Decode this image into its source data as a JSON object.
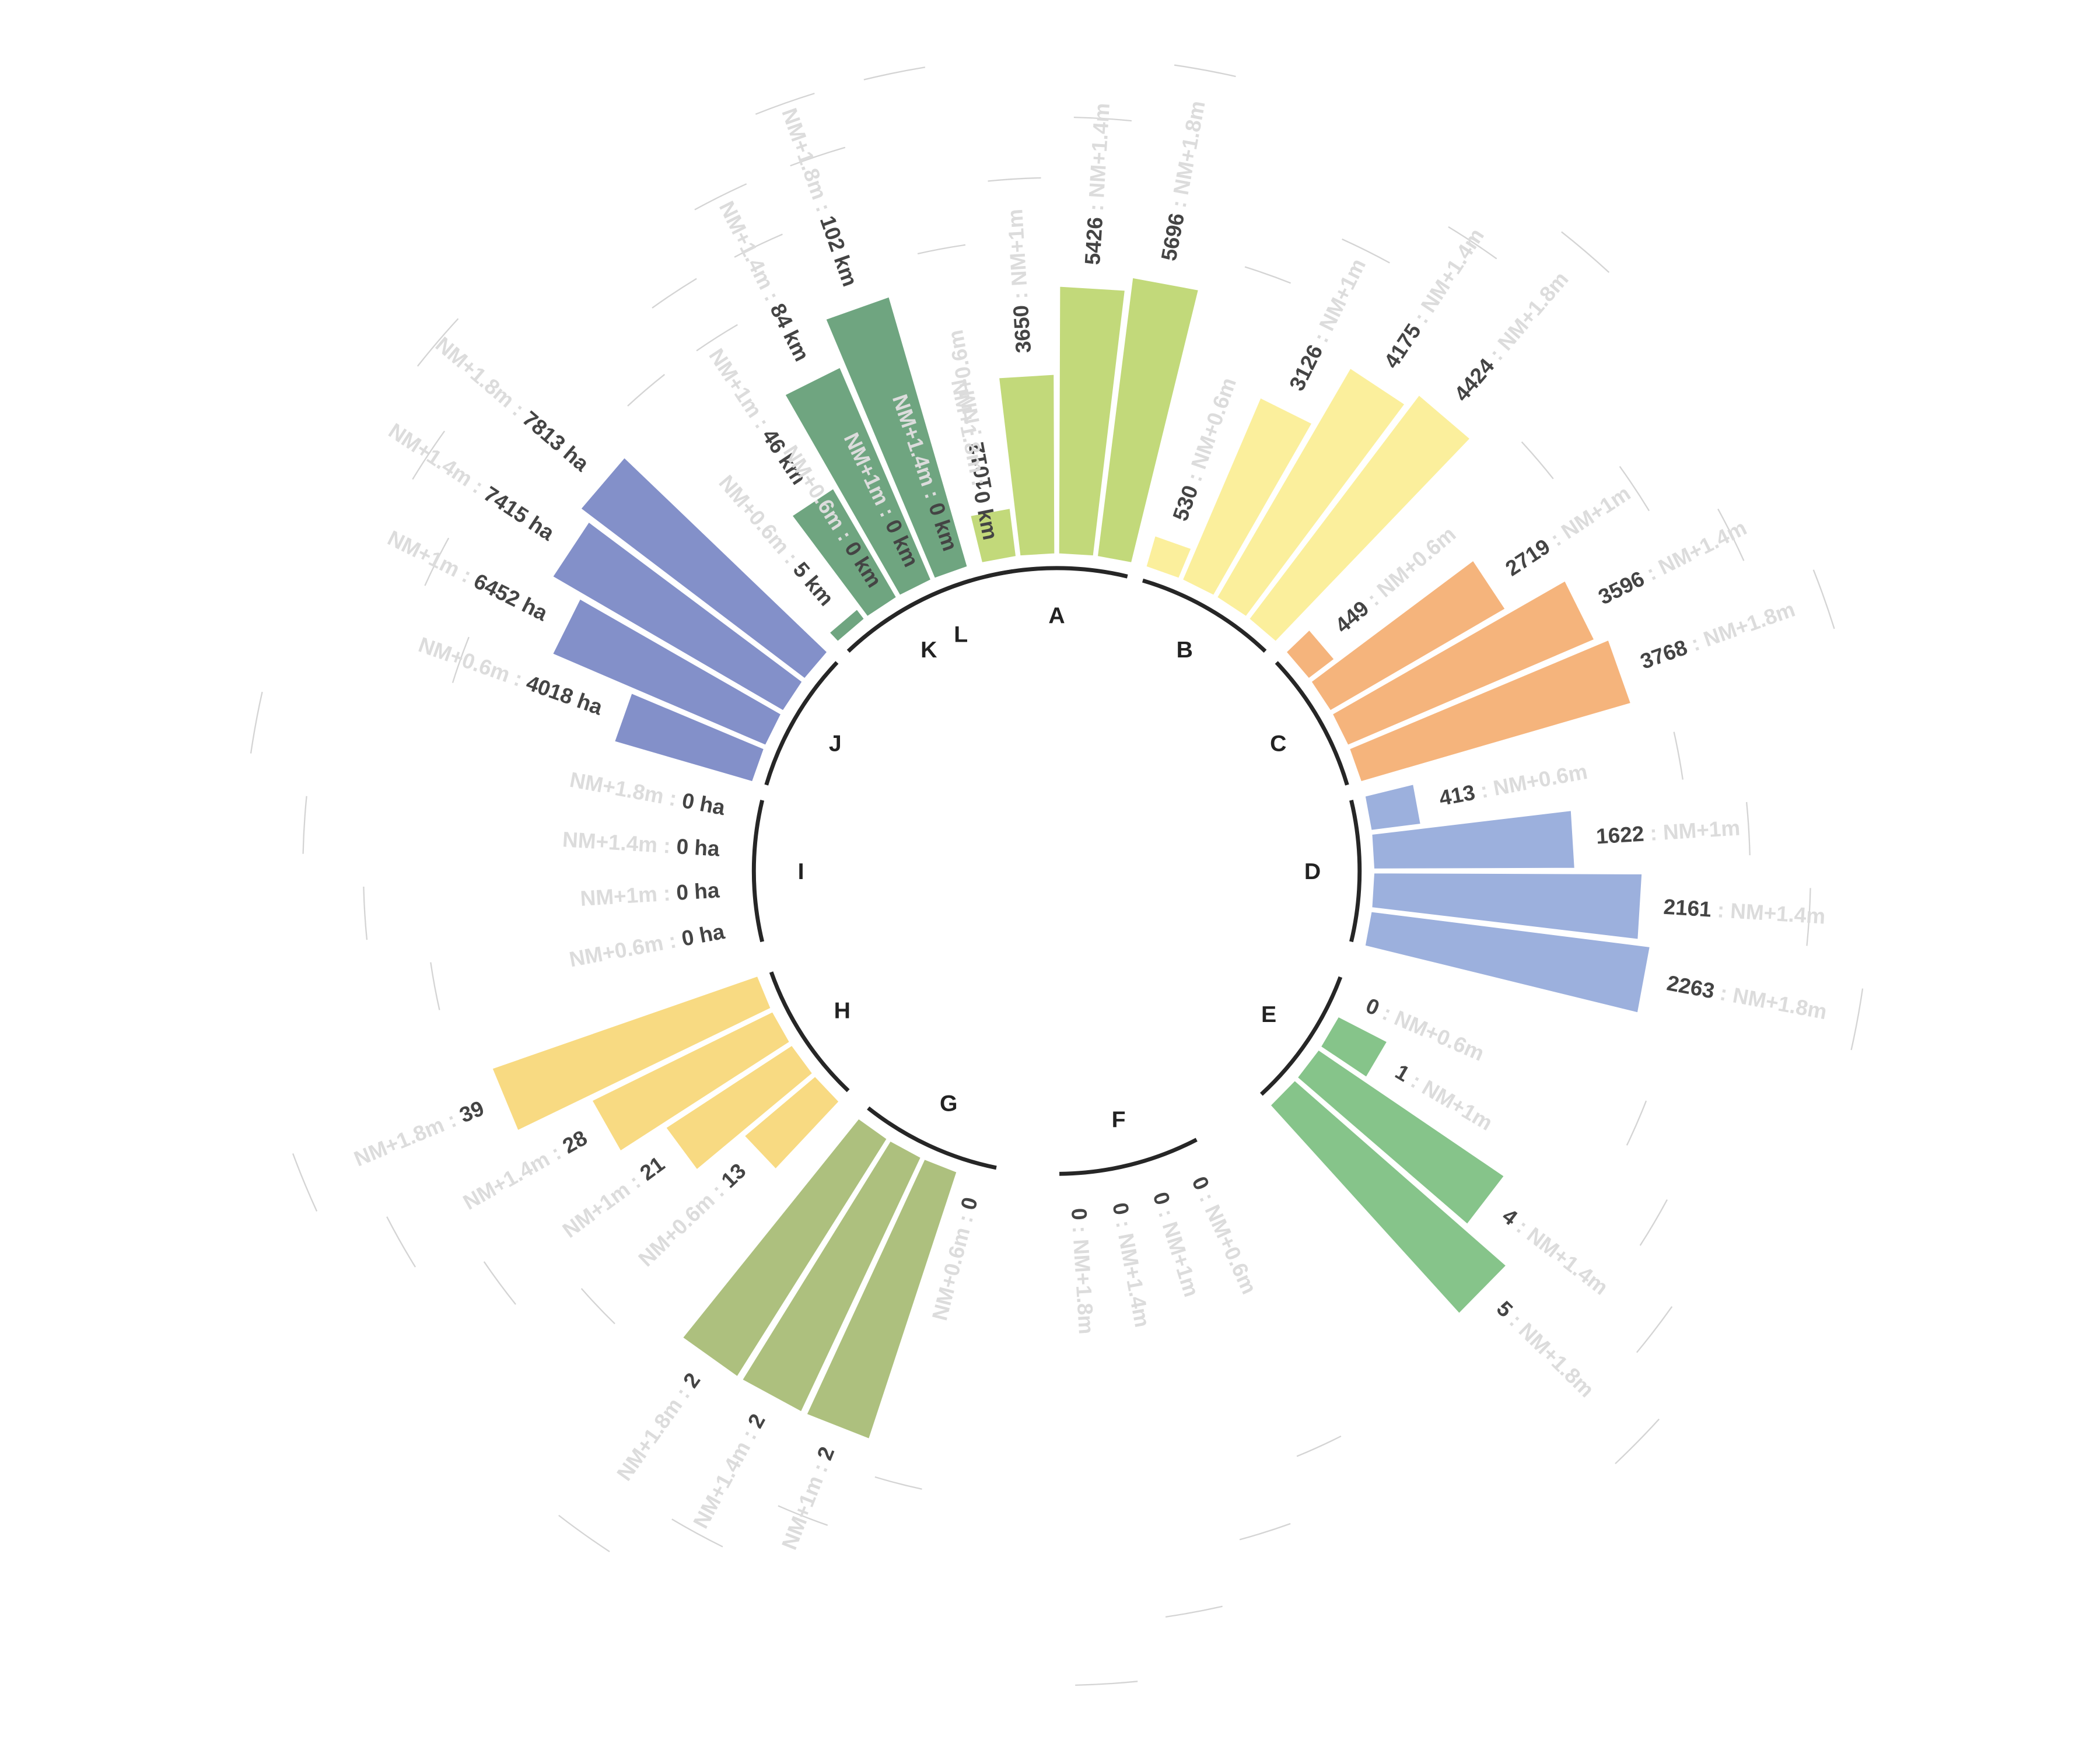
{
  "chart_data": {
    "type": "bar",
    "layout": "radial",
    "levels": [
      "NM+0.6m",
      "NM+1m",
      "NM+1.4m",
      "NM+1.8m"
    ],
    "segments": [
      {
        "letter": "A",
        "color": "#c2d97a",
        "values": [
          1012,
          3650,
          5426,
          5696
        ],
        "labels": [
          "1012",
          "3650",
          "5426",
          "5696"
        ]
      },
      {
        "letter": "B",
        "color": "#fbef9c",
        "values": [
          530,
          3126,
          4175,
          4424
        ],
        "labels": [
          "530",
          "3126",
          "4175",
          "4424"
        ]
      },
      {
        "letter": "C",
        "color": "#f5b47c",
        "values": [
          449,
          2719,
          3596,
          3768
        ],
        "labels": [
          "449",
          "2719",
          "3596",
          "3768"
        ]
      },
      {
        "letter": "D",
        "color": "#9cb0dd",
        "values": [
          413,
          1622,
          2161,
          2263
        ],
        "labels": [
          "413",
          "1622",
          "2161",
          "2263"
        ]
      },
      {
        "letter": "E",
        "color": "#86c48a",
        "values": [
          0,
          1,
          4,
          5
        ],
        "labels": [
          "0",
          "1",
          "4",
          "5"
        ]
      },
      {
        "letter": "F",
        "color": "#86c48a",
        "values": [
          0,
          0,
          0,
          0
        ],
        "labels": [
          "0",
          "0",
          "0",
          "0"
        ]
      },
      {
        "letter": "G",
        "color": "#adc07e",
        "values": [
          0,
          2,
          2,
          2
        ],
        "labels": [
          "0",
          "2",
          "2",
          "2"
        ]
      },
      {
        "letter": "H",
        "color": "#f8da82",
        "values": [
          13,
          21,
          28,
          39
        ],
        "labels": [
          "13",
          "21",
          "28",
          "39"
        ]
      },
      {
        "letter": "I",
        "color": "#8a96cc",
        "values": [
          0,
          0,
          0,
          0
        ],
        "labels": [
          "0 ha",
          "0 ha",
          "0 ha",
          "0 ha"
        ]
      },
      {
        "letter": "J",
        "color": "#8390c9",
        "values": [
          4018,
          6452,
          7415,
          7813
        ],
        "labels": [
          "4018 ha",
          "6452 ha",
          "7415 ha",
          "7813 ha"
        ]
      },
      {
        "letter": "K",
        "color": "#6fa580",
        "values": [
          5,
          46,
          84,
          102
        ],
        "labels": [
          "5 km",
          "46 km",
          "84 km",
          "102 km"
        ]
      },
      {
        "letter": "L",
        "color": "#6fa580",
        "values": [
          0,
          0,
          0,
          0
        ],
        "labels": [
          "0 km",
          "0 km",
          "0 km",
          "0 km"
        ]
      }
    ]
  }
}
